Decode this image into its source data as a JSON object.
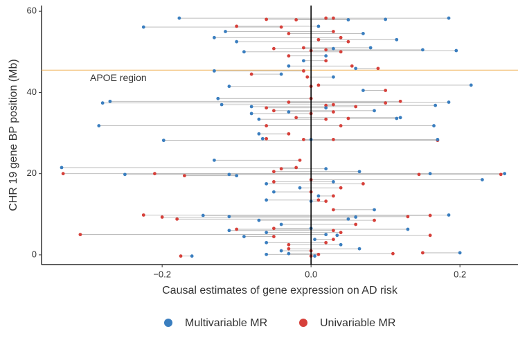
{
  "chart_data": {
    "type": "dumbbell",
    "xlabel": "Causal estimates of gene expression on AD risk",
    "ylabel": "CHR 19 gene BP position (Mb)",
    "xlim": [
      -0.362,
      0.278
    ],
    "ylim": [
      -2.4,
      61.4
    ],
    "xticks": [
      {
        "value": -0.2,
        "label": "−0.2"
      },
      {
        "value": 0,
        "label": "0.0"
      },
      {
        "value": 0.2,
        "label": "0.2"
      }
    ],
    "yticks": [
      0,
      20,
      40,
      60
    ],
    "vline": 0,
    "reference_line": {
      "y": 45.5,
      "label": "APOE region",
      "color": "#f0b45a"
    },
    "y": [
      58.3,
      58.3,
      58.0,
      57.9,
      56.1,
      56.3,
      55.0,
      54.5,
      53.5,
      53.0,
      52.5,
      51.0,
      50.8,
      50.5,
      50.3,
      50.0,
      49.0,
      47.8,
      46.5,
      45.9,
      45.3,
      44.5,
      43.8,
      41.8,
      41.5,
      40.5,
      38.5,
      37.8,
      37.6,
      37.4,
      37.0,
      36.8,
      36.5,
      36.2,
      35.5,
      35.2,
      34.8,
      33.8,
      33.6,
      33.4,
      31.8,
      31.8,
      29.8,
      28.6,
      28.4,
      28.4,
      28.2,
      23.3,
      21.5,
      20.0,
      19.8,
      20.0,
      19.8,
      20.5,
      21.2,
      19.5,
      18.5,
      18.0,
      17.5,
      16.5,
      15.5,
      14.5,
      13.5,
      13.2,
      11.1,
      9.8,
      9.7,
      9.4,
      9.3,
      8.8,
      8.5,
      7.5,
      6.5,
      6.3,
      6.0,
      5.5,
      5.0,
      4.8,
      4.5,
      3.8,
      3.0,
      2.5,
      1.5,
      1.0,
      0.5,
      0.1,
      0.3,
      -0.3,
      -0.3
    ],
    "series": [
      {
        "name": "Multivariable MR",
        "color": "#3a7ebf",
        "values": [
          -0.177,
          0.185,
          0.1,
          0.05,
          -0.225,
          0.01,
          -0.115,
          0.07,
          -0.13,
          0.115,
          -0.1,
          0.08,
          0.03,
          0.15,
          0.195,
          -0.09,
          0.02,
          -0.01,
          -0.03,
          0.06,
          -0.13,
          -0.04,
          0.03,
          0.215,
          -0.11,
          0.07,
          -0.125,
          -0.27,
          0.185,
          -0.28,
          -0.12,
          0.167,
          -0.08,
          0.02,
          0.085,
          -0.03,
          -0.08,
          0.12,
          0.115,
          -0.07,
          -0.285,
          0.165,
          -0.07,
          -0.065,
          0.17,
          0.0,
          -0.198,
          -0.13,
          -0.335,
          0.26,
          -0.25,
          0.16,
          -0.11,
          0.065,
          0.02,
          -0.1,
          0.23,
          0.03,
          -0.06,
          -0.015,
          -0.05,
          0.01,
          -0.06,
          0.0,
          0.085,
          0.185,
          -0.145,
          -0.11,
          0.06,
          0.05,
          -0.07,
          -0.04,
          0.0,
          0.13,
          -0.11,
          -0.06,
          0.02,
          0.035,
          -0.09,
          0.005,
          -0.06,
          0.04,
          0.065,
          -0.04,
          0.2,
          -0.06,
          -0.03,
          -0.16,
          0.005
        ]
      },
      {
        "name": "Univariable MR",
        "color": "#d6403a",
        "values": [
          0.03,
          0.02,
          -0.06,
          -0.02,
          -0.04,
          -0.1,
          0.03,
          -0.03,
          0.04,
          0.01,
          0.05,
          -0.01,
          -0.05,
          0.02,
          0.0,
          0.04,
          -0.03,
          0.02,
          0.055,
          0.09,
          -0.01,
          -0.08,
          -0.005,
          0.01,
          0.0,
          0.1,
          0.0,
          0.12,
          -0.03,
          0.1,
          0.03,
          0.02,
          0.06,
          -0.06,
          -0.05,
          0.03,
          0.0,
          -0.02,
          0.05,
          0.02,
          0.04,
          -0.06,
          -0.03,
          -0.06,
          -0.01,
          0.03,
          0.17,
          -0.015,
          -0.02,
          -0.333,
          0.255,
          -0.21,
          0.145,
          -0.05,
          -0.04,
          -0.17,
          0.0,
          -0.05,
          0.07,
          0.04,
          0.0,
          0.03,
          0.01,
          0.02,
          0.03,
          -0.225,
          0.16,
          0.13,
          -0.2,
          -0.18,
          0.085,
          0.06,
          -0.05,
          -0.1,
          0.03,
          0.04,
          -0.31,
          0.16,
          -0.05,
          0.03,
          0.02,
          -0.03,
          -0.03,
          0.0,
          0.15,
          0.01,
          0.11,
          -0.175,
          0.0
        ]
      }
    ]
  }
}
